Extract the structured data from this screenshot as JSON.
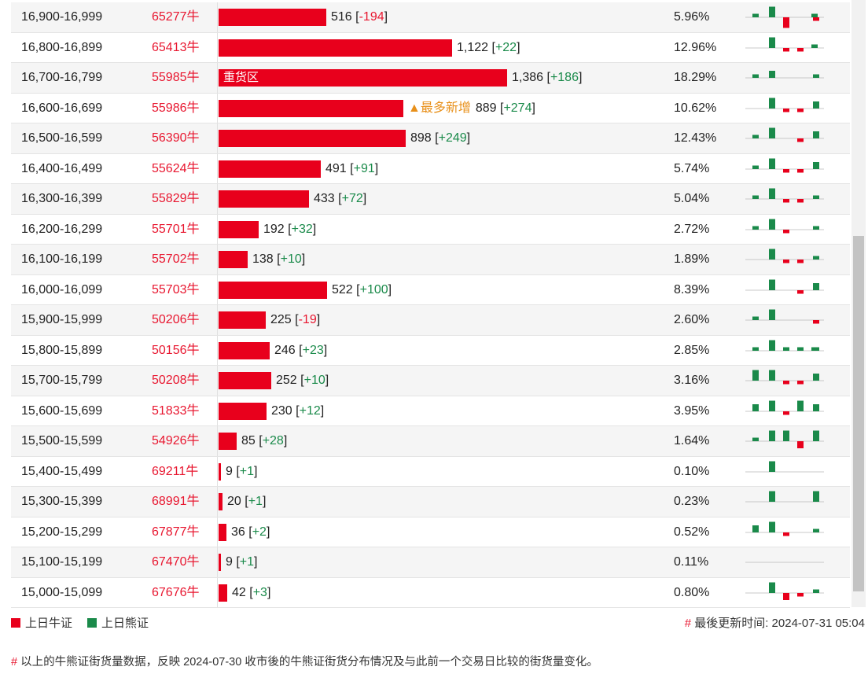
{
  "rows": [
    {
      "range": "16,900-16,999",
      "bull": "65277牛",
      "value": 516,
      "count": "516",
      "delta": "-194",
      "pct": "5.96%",
      "spark": [
        1,
        3,
        -3,
        0,
        1,
        -1
      ]
    },
    {
      "range": "16,800-16,899",
      "bull": "65413牛",
      "value": 1122,
      "count": "1,122",
      "delta": "+22",
      "pct": "12.96%",
      "spark": [
        0,
        3,
        -1,
        -1,
        1,
        0
      ]
    },
    {
      "range": "16,700-16,799",
      "bull": "55985牛",
      "value": 1386,
      "count": "1,386",
      "delta": "+186",
      "pct": "18.29%",
      "tag": "重货区",
      "spark": [
        1,
        2,
        0,
        0,
        0,
        1
      ]
    },
    {
      "range": "16,600-16,699",
      "bull": "55986牛",
      "value": 889,
      "count": "889",
      "delta": "+274",
      "pct": "10.62%",
      "note": "▲最多新增",
      "spark": [
        0,
        3,
        -1,
        -1,
        0,
        2
      ]
    },
    {
      "range": "16,500-16,599",
      "bull": "56390牛",
      "value": 898,
      "count": "898",
      "delta": "+249",
      "pct": "12.43%",
      "spark": [
        1,
        3,
        0,
        -1,
        0,
        2
      ]
    },
    {
      "range": "16,400-16,499",
      "bull": "55624牛",
      "value": 491,
      "count": "491",
      "delta": "+91",
      "pct": "5.74%",
      "spark": [
        1,
        3,
        -1,
        -1,
        0,
        2
      ]
    },
    {
      "range": "16,300-16,399",
      "bull": "55829牛",
      "value": 433,
      "count": "433",
      "delta": "+72",
      "pct": "5.04%",
      "spark": [
        1,
        3,
        -1,
        -1,
        0,
        1
      ]
    },
    {
      "range": "16,200-16,299",
      "bull": "55701牛",
      "value": 192,
      "count": "192",
      "delta": "+32",
      "pct": "2.72%",
      "spark": [
        1,
        3,
        -1,
        0,
        0,
        1
      ]
    },
    {
      "range": "16,100-16,199",
      "bull": "55702牛",
      "value": 138,
      "count": "138",
      "delta": "+10",
      "pct": "1.89%",
      "spark": [
        0,
        3,
        -1,
        -1,
        0,
        1
      ]
    },
    {
      "range": "16,000-16,099",
      "bull": "55703牛",
      "value": 522,
      "count": "522",
      "delta": "+100",
      "pct": "8.39%",
      "spark": [
        0,
        3,
        0,
        -1,
        0,
        2
      ]
    },
    {
      "range": "15,900-15,999",
      "bull": "50206牛",
      "value": 225,
      "count": "225",
      "delta": "-19",
      "pct": "2.60%",
      "spark": [
        1,
        3,
        0,
        0,
        0,
        -1
      ]
    },
    {
      "range": "15,800-15,899",
      "bull": "50156牛",
      "value": 246,
      "count": "246",
      "delta": "+23",
      "pct": "2.85%",
      "spark": [
        1,
        3,
        1,
        1,
        1,
        1
      ]
    },
    {
      "range": "15,700-15,799",
      "bull": "50208牛",
      "value": 252,
      "count": "252",
      "delta": "+10",
      "pct": "3.16%",
      "spark": [
        3,
        3,
        -1,
        -1,
        0,
        2
      ]
    },
    {
      "range": "15,600-15,699",
      "bull": "51833牛",
      "value": 230,
      "count": "230",
      "delta": "+12",
      "pct": "3.95%",
      "spark": [
        2,
        3,
        -1,
        3,
        0,
        2
      ]
    },
    {
      "range": "15,500-15,599",
      "bull": "54926牛",
      "value": 85,
      "count": "85",
      "delta": "+28",
      "pct": "1.64%",
      "spark": [
        1,
        3,
        3,
        -2,
        0,
        3
      ]
    },
    {
      "range": "15,400-15,499",
      "bull": "69211牛",
      "value": 9,
      "count": "9",
      "delta": "+1",
      "pct": "0.10%",
      "spark": [
        0,
        3,
        0,
        0,
        0,
        0
      ]
    },
    {
      "range": "15,300-15,399",
      "bull": "68991牛",
      "value": 20,
      "count": "20",
      "delta": "+1",
      "pct": "0.23%",
      "spark": [
        0,
        3,
        0,
        0,
        0,
        3
      ]
    },
    {
      "range": "15,200-15,299",
      "bull": "67877牛",
      "value": 36,
      "count": "36",
      "delta": "+2",
      "pct": "0.52%",
      "spark": [
        2,
        3,
        -1,
        0,
        0,
        1
      ]
    },
    {
      "range": "15,100-15,199",
      "bull": "67470牛",
      "value": 9,
      "count": "9",
      "delta": "+1",
      "pct": "0.11%",
      "spark": [
        0,
        0,
        0,
        0,
        0,
        0
      ]
    },
    {
      "range": "15,000-15,099",
      "bull": "67676牛",
      "value": 42,
      "count": "42",
      "delta": "+3",
      "pct": "0.80%",
      "spark": [
        0,
        3,
        -2,
        -1,
        0,
        1
      ]
    }
  ],
  "max_value": 1386,
  "colors": {
    "bull": "#e8001c",
    "bear": "#1a8a4a"
  },
  "legend": {
    "bull": "上日牛证",
    "bear": "上日熊证"
  },
  "updated": {
    "hash": "#",
    "text": "最後更新时间: 2024-07-31 05:04"
  },
  "footnote": {
    "hash": "#",
    "text": "以上的牛熊证街货量数据，反映 2024-07-30 收市後的牛熊证街货分布情况及与此前一个交易日比较的街货量变化。"
  }
}
